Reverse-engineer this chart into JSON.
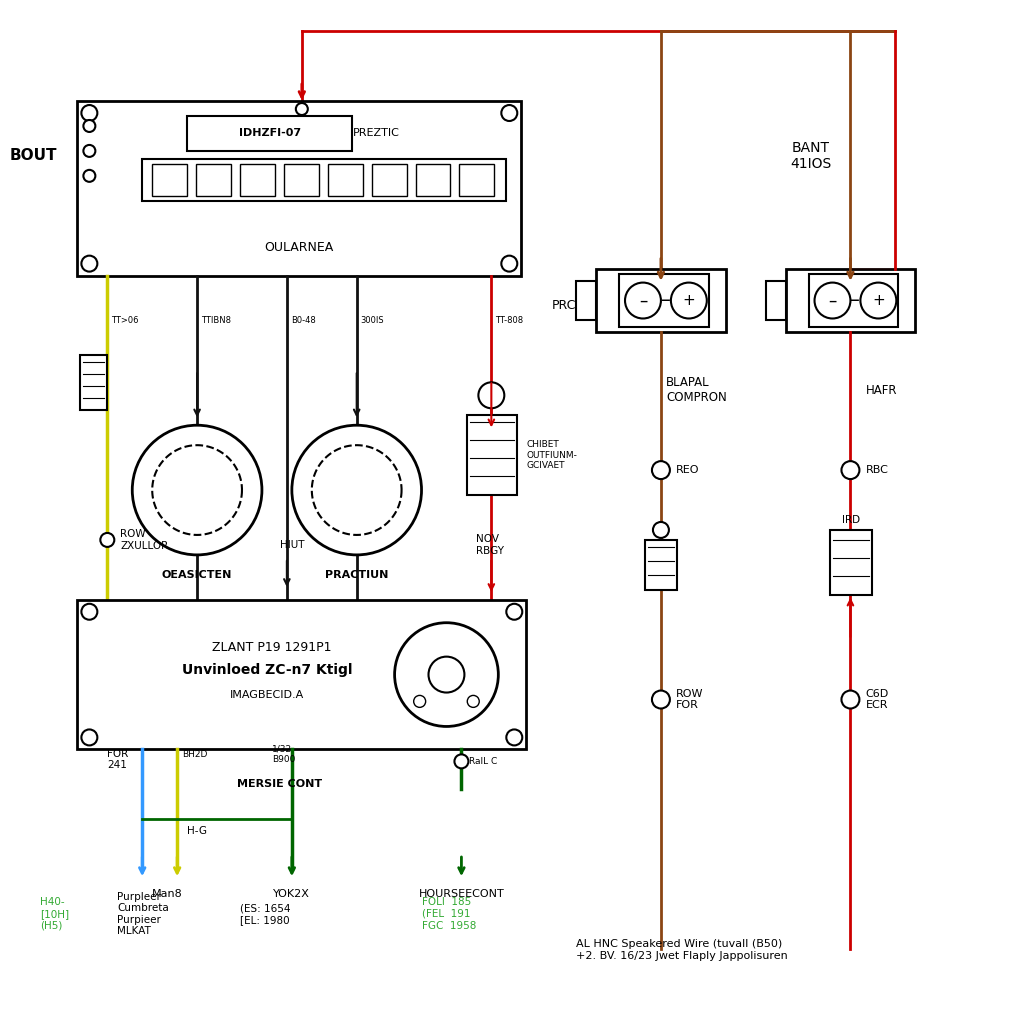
{
  "bg_color": "#ffffff",
  "main_unit_id": "IDHZFI-07",
  "main_unit_id2": "PREZTIC",
  "main_unit_label": "OULARNEA",
  "bout_label": "BOUT",
  "amp_label1": "ZLANT P19 1291P1",
  "amp_label2": "Unvinloed ZC-n7 Ktigl",
  "amp_label3": "IMAGBECID.A",
  "wire_labels_top": [
    "TT>06",
    "TTIBN8",
    "B0-48",
    "300IS",
    "TT-808"
  ],
  "speaker1_label": "OEASICTEN",
  "speaker2_label": "PRACTIUN",
  "connector_label": "CHIBET\nOUTFIUNM-\nGCIVAET",
  "row_label": "ROW\nZXULLOR",
  "hiut_label": "HIUT",
  "nov_label": "NOV\nRBGY",
  "for241_label": "FOR\n241",
  "bh2d_label": "BH2D",
  "v32_label": "1/32\nB900",
  "mersie_label": "MERSIE CONT",
  "ralc_label": "RalL C",
  "hg_label": "H-G",
  "mars_label": "Man8",
  "yok2x_label": "YOK2X",
  "hourseecont_label": "HOURSEECONT",
  "h40_label": "H40-\n[10H]\n(H5)",
  "purpleer_label": "Purpleer\nCumbreta\nPurpieer\nMLKAT",
  "es_label": "(ES: 1654\n[EL: 1980",
  "foli_label": "FOLI  185\n(FEL  191\nFGC  1958",
  "bant_label": "BANT\n41IOS",
  "prc_label": "PRC",
  "blapal_label": "BLAPAL\nCOMPRON",
  "hafr_label": "HAFR",
  "reo_label": "REO",
  "rbc_label": "RBC",
  "row_for_label": "ROW\nFOR",
  "c6d_label": "C6D\nECR",
  "ird_label": "IRD",
  "legend": "AL HNC Speakered Wire (tuvall (B50)\n+2. BV. 16/23 Jwet Flaply Jappolisuren",
  "colors": {
    "red": "#cc0000",
    "yellow": "#cccc00",
    "brown": "#8B4513",
    "blue": "#3399ff",
    "dkgreen": "#006600",
    "ltgreen": "#33aa33",
    "black": "#111111"
  }
}
